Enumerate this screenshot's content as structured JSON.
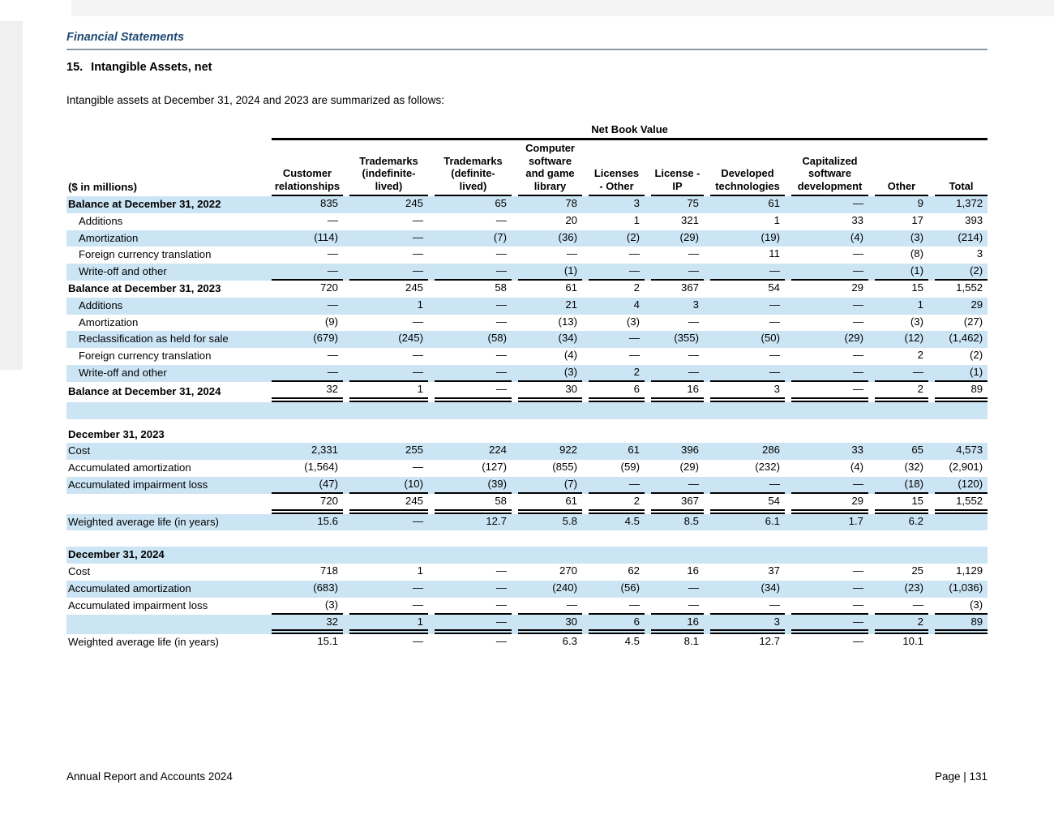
{
  "page": {
    "section_title": "Financial Statements",
    "heading_number": "15.",
    "heading_text": "Intangible Assets, net",
    "intro": "Intangible assets at December 31, 2024 and 2023 are summarized as follows:"
  },
  "table": {
    "group_header": "Net Book Value",
    "unit_label": "($ in millions)",
    "shaded_row_color": "#cce5f5",
    "columns": [
      "Customer\nrelationships",
      "Trademarks\n(indefinite-\nlived)",
      "Trademarks\n(definite-\nlived)",
      "Computer\nsoftware\nand game\nlibrary",
      "Licenses\n- Other",
      "License -\nIP",
      "Developed\ntechnologies",
      "Capitalized\nsoftware\ndevelopment",
      "Other",
      "Total"
    ],
    "rows": [
      {
        "label": "Balance at December 31, 2022",
        "bold": true,
        "shaded": true,
        "values": [
          "835",
          "245",
          "65",
          "78",
          "3",
          "75",
          "61",
          "—",
          "9",
          "1,372"
        ]
      },
      {
        "label": "Additions",
        "indent": true,
        "values": [
          "—",
          "—",
          "—",
          "20",
          "1",
          "321",
          "1",
          "33",
          "17",
          "393"
        ]
      },
      {
        "label": "Amortization",
        "indent": true,
        "shaded": true,
        "values": [
          "(114)",
          "—",
          "(7)",
          "(36)",
          "(2)",
          "(29)",
          "(19)",
          "(4)",
          "(3)",
          "(214)"
        ]
      },
      {
        "label": "Foreign currency translation",
        "indent": true,
        "values": [
          "—",
          "—",
          "—",
          "—",
          "—",
          "—",
          "11",
          "—",
          "(8)",
          "3"
        ]
      },
      {
        "label": "Write-off and other",
        "indent": true,
        "shaded": true,
        "u": "s",
        "values": [
          "—",
          "—",
          "—",
          "(1)",
          "—",
          "—",
          "—",
          "—",
          "(1)",
          "(2)"
        ]
      },
      {
        "label": "Balance at December 31, 2023",
        "bold": true,
        "values": [
          "720",
          "245",
          "58",
          "61",
          "2",
          "367",
          "54",
          "29",
          "15",
          "1,552"
        ]
      },
      {
        "label": "Additions",
        "indent": true,
        "shaded": true,
        "values": [
          "—",
          "1",
          "—",
          "21",
          "4",
          "3",
          "—",
          "—",
          "1",
          "29"
        ]
      },
      {
        "label": "Amortization",
        "indent": true,
        "values": [
          "(9)",
          "—",
          "—",
          "(13)",
          "(3)",
          "—",
          "—",
          "—",
          "(3)",
          "(27)"
        ]
      },
      {
        "label": "Reclassification as held for sale",
        "indent": true,
        "shaded": true,
        "values": [
          "(679)",
          "(245)",
          "(58)",
          "(34)",
          "—",
          "(355)",
          "(50)",
          "(29)",
          "(12)",
          "(1,462)"
        ]
      },
      {
        "label": "Foreign currency translation",
        "indent": true,
        "values": [
          "—",
          "—",
          "—",
          "(4)",
          "—",
          "—",
          "—",
          "—",
          "2",
          "(2)"
        ]
      },
      {
        "label": "Write-off and other",
        "indent": true,
        "shaded": true,
        "u": "s",
        "values": [
          "—",
          "—",
          "—",
          "(3)",
          "2",
          "—",
          "—",
          "—",
          "—",
          "(1)"
        ]
      },
      {
        "label": "Balance at December 31, 2024",
        "bold": true,
        "u": "d",
        "values": [
          "32",
          "1",
          "—",
          "30",
          "6",
          "16",
          "3",
          "—",
          "2",
          "89"
        ]
      },
      {
        "type": "spacer",
        "shaded": true,
        "h": 21
      },
      {
        "type": "gap",
        "h": 9
      },
      {
        "label": "December 31, 2023",
        "bold": true,
        "values": [
          "",
          "",
          "",
          "",
          "",
          "",
          "",
          "",
          "",
          ""
        ]
      },
      {
        "label": "Cost",
        "shaded": true,
        "values": [
          "2,331",
          "255",
          "224",
          "922",
          "61",
          "396",
          "286",
          "33",
          "65",
          "4,573"
        ]
      },
      {
        "label": "Accumulated amortization",
        "values": [
          "(1,564)",
          "—",
          "(127)",
          "(855)",
          "(59)",
          "(29)",
          "(232)",
          "(4)",
          "(32)",
          "(2,901)"
        ]
      },
      {
        "label": "Accumulated impairment loss",
        "shaded": true,
        "u": "s",
        "values": [
          "(47)",
          "(10)",
          "(39)",
          "(7)",
          "—",
          "—",
          "—",
          "—",
          "(18)",
          "(120)"
        ]
      },
      {
        "label": "",
        "u": "d",
        "values": [
          "720",
          "245",
          "58",
          "61",
          "2",
          "367",
          "54",
          "29",
          "15",
          "1,552"
        ]
      },
      {
        "label": "Weighted average life (in years)",
        "shaded": true,
        "values": [
          "15.6",
          "—",
          "12.7",
          "5.8",
          "4.5",
          "8.5",
          "6.1",
          "1.7",
          "6.2",
          ""
        ]
      },
      {
        "type": "gap",
        "h": 20
      },
      {
        "label": "December 31, 2024",
        "bold": true,
        "shaded": true,
        "values": [
          "",
          "",
          "",
          "",
          "",
          "",
          "",
          "",
          "",
          ""
        ]
      },
      {
        "label": "Cost",
        "values": [
          "718",
          "1",
          "—",
          "270",
          "62",
          "16",
          "37",
          "—",
          "25",
          "1,129"
        ]
      },
      {
        "label": "Accumulated amortization",
        "shaded": true,
        "values": [
          "(683)",
          "—",
          "—",
          "(240)",
          "(56)",
          "—",
          "(34)",
          "—",
          "(23)",
          "(1,036)"
        ]
      },
      {
        "label": "Accumulated impairment loss",
        "u": "s",
        "values": [
          "(3)",
          "—",
          "—",
          "—",
          "—",
          "—",
          "—",
          "—",
          "—",
          "(3)"
        ]
      },
      {
        "label": "",
        "shaded": true,
        "u": "d",
        "values": [
          "32",
          "1",
          "—",
          "30",
          "6",
          "16",
          "3",
          "—",
          "2",
          "89"
        ]
      },
      {
        "label": "Weighted average life (in years)",
        "values": [
          "15.1",
          "—",
          "—",
          "6.3",
          "4.5",
          "8.1",
          "12.7",
          "—",
          "10.1",
          ""
        ]
      }
    ]
  },
  "footer": {
    "left": "Annual Report and Accounts 2024",
    "right": "Page | 131"
  }
}
